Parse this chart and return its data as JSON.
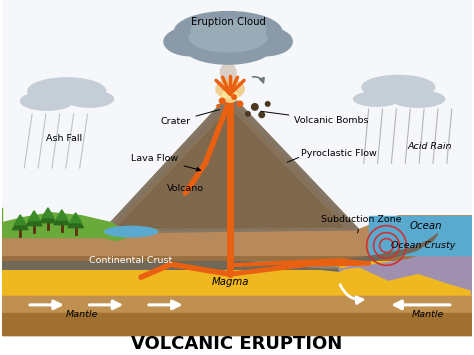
{
  "title": "VOLCANIC ERUPTION",
  "title_fontsize": 13,
  "title_fontweight": "bold",
  "labels": {
    "eruption_cloud": "Eruption Cloud",
    "crater": "Crater",
    "volcanic_bombs": "Volcanic Bombs",
    "ash_fall": "Ash Fall",
    "lava_flow": "Lava Flow",
    "pyroclastic_flow": "Pyroclastic Flow",
    "acid_rain": "Acid Rain",
    "volcano": "Volcano",
    "subduction_zone": "Subduction Zone",
    "ocean": "Ocean",
    "ocean_crust": "Ocean Crusty",
    "continental_crust": "Continental Crust",
    "magma": "Magma",
    "mantle_left": "Mantle",
    "mantle_right": "Mantle"
  },
  "colors": {
    "sky": "#f5f7fa",
    "eruption_cloud": "#8a9aa8",
    "eruption_cloud2": "#9aabb8",
    "side_cloud": "#c5cdd6",
    "volcano_dark": "#6b6b6b",
    "volcano_mid": "#7a7060",
    "volcano_light": "#9a8870",
    "terrain_brown": "#b8895a",
    "terrain_dark": "#9a7040",
    "green_land": "#6aaa3a",
    "green_dark": "#4a8a2a",
    "tree_dark": "#2a6a1a",
    "tree_mid": "#3a8a2a",
    "water_blue": "#5aaad0",
    "ocean_blue": "#5aaad0",
    "ocean_mid": "#80b8d8",
    "ocean_crust_purple": "#a090b0",
    "cont_crust_gray": "#8a8878",
    "cont_crust_dark": "#706858",
    "yellow_magma": "#f0b820",
    "mantle_brown": "#c09050",
    "mantle_dark": "#a07030",
    "lava_orange": "#e86010",
    "lava_bright": "#f08020",
    "subduction_gray": "#706858",
    "ripple_red": "#cc3333",
    "glow_yellow": "#fff0a0",
    "ash_gray": "#a0a8b0",
    "rain_gray": "#909090"
  }
}
